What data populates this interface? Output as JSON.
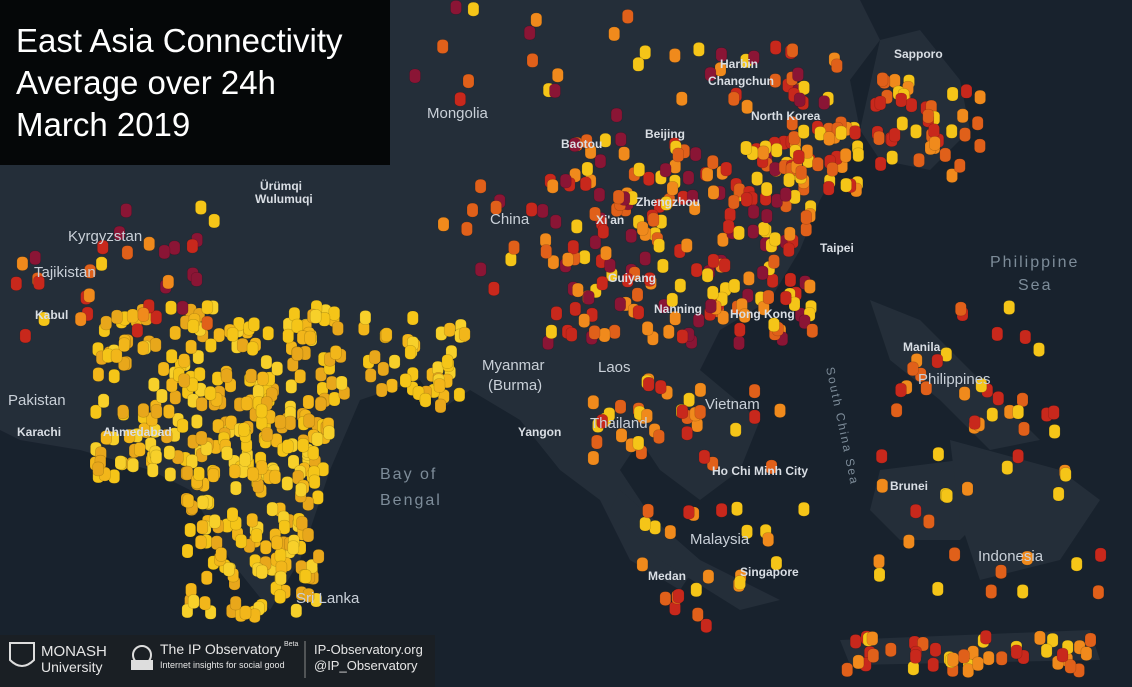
{
  "title_lines": [
    "East Asia Connectivity",
    "Average over 24h",
    "March 2019"
  ],
  "regions": [
    "Mongolia",
    "Kyrgyzstan",
    "Tajikistan",
    "Pakistan",
    "China",
    "Myanmar",
    "(Burma)",
    "Laos",
    "Thailand",
    "Vietnam",
    "Malaysia",
    "Indonesia",
    "Philippines",
    "Sri Lanka",
    "North Korea"
  ],
  "cities": [
    "Harbin",
    "Changchun",
    "Beijing",
    "Baotou",
    "Ürümqi",
    "Wulumuqi",
    "Kabul",
    "Karachi",
    "Ahmedabad",
    "Xi'an",
    "Zhengzhou",
    "Guiyang",
    "Nanning",
    "Hong Kong",
    "Taipei",
    "Yangon",
    "Ho Chi Minh City",
    "Medan",
    "Singapore",
    "Manila",
    "Brunei",
    "Sapporo"
  ],
  "seas": [
    "Philippine",
    "Sea",
    "Bay of",
    "Bengal",
    "South China Sea"
  ],
  "footer": {
    "monash": "MONASH",
    "university": "University",
    "observatory": "The IP Observatory",
    "beta": "Beta",
    "tagline": "Internet insights for social good",
    "site": "IP-Observatory.org",
    "handle": "@IP_Observatory"
  }
}
